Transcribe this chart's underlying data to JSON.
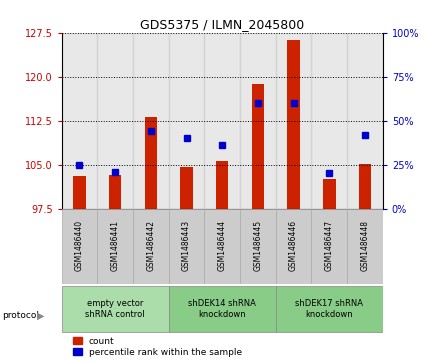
{
  "title": "GDS5375 / ILMN_2045800",
  "samples": [
    "GSM1486440",
    "GSM1486441",
    "GSM1486442",
    "GSM1486443",
    "GSM1486444",
    "GSM1486445",
    "GSM1486446",
    "GSM1486447",
    "GSM1486448"
  ],
  "bar_values": [
    103.0,
    103.2,
    113.2,
    104.6,
    105.6,
    118.7,
    126.2,
    102.5,
    105.1
  ],
  "base_value": 97.5,
  "percentile_values": [
    25,
    21,
    44,
    40,
    36,
    60,
    60,
    20,
    42
  ],
  "ylim_left": [
    97.5,
    127.5
  ],
  "ylim_right": [
    0,
    100
  ],
  "yticks_left": [
    97.5,
    105,
    112.5,
    120,
    127.5
  ],
  "yticks_right": [
    0,
    25,
    50,
    75,
    100
  ],
  "left_tick_color": "#cc0000",
  "right_tick_color": "#0000cc",
  "bar_color": "#cc2200",
  "dot_color": "#0000cc",
  "grid_color": "#000000",
  "col_bg_color": "#cccccc",
  "protocols": [
    {
      "label": "empty vector\nshRNA control",
      "start": 0,
      "end": 2,
      "color": "#aaddaa"
    },
    {
      "label": "shDEK14 shRNA\nknockdown",
      "start": 3,
      "end": 5,
      "color": "#88cc88"
    },
    {
      "label": "shDEK17 shRNA\nknockdown",
      "start": 6,
      "end": 8,
      "color": "#88cc88"
    }
  ],
  "legend_items": [
    {
      "label": "count",
      "color": "#cc2200"
    },
    {
      "label": "percentile rank within the sample",
      "color": "#0000cc"
    }
  ],
  "protocol_label": "protocol",
  "bg_color": "#ffffff",
  "plot_bg": "#ffffff"
}
